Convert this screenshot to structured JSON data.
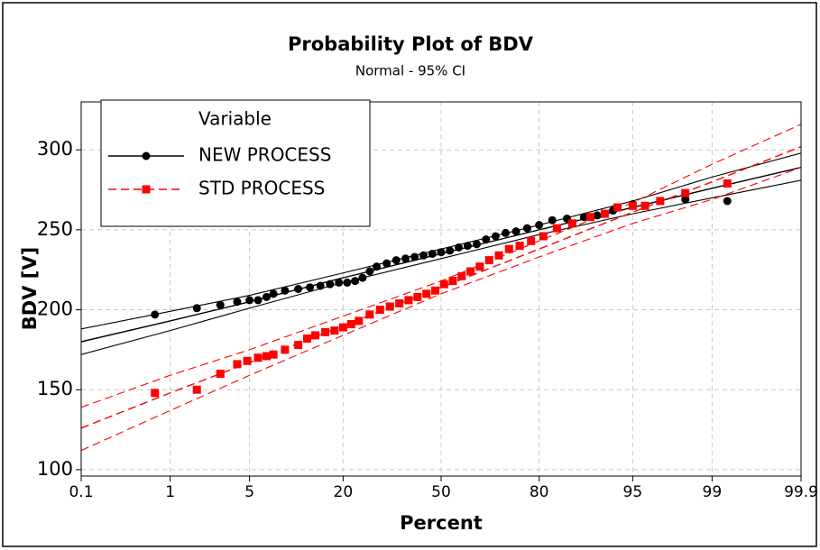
{
  "chart_data": {
    "type": "probability",
    "title": "Probability Plot of BDV",
    "subtitle": "Normal - 95% CI",
    "x_label": "Percent",
    "y_label": "BDV [V]",
    "legend_title": "Variable",
    "legend": "upper left",
    "grid": true,
    "xlim": [
      0.1,
      99.9
    ],
    "xticks": [
      0.1,
      1,
      5,
      20,
      50,
      80,
      95,
      99,
      99.9
    ],
    "ylim": [
      96,
      330
    ],
    "yticks": [
      100,
      150,
      200,
      250,
      300
    ],
    "ci_x": [
      0.1,
      1,
      5,
      20,
      50,
      80,
      95,
      99,
      99.9
    ],
    "series": [
      {
        "name": "NEW PROCESS",
        "color": "#000000",
        "marker": "circle",
        "dashed": false,
        "x": [
          0.7,
          1.8,
          2.9,
          4,
          5,
          5.8,
          6.7,
          7.5,
          9,
          11,
          13,
          15,
          17,
          19,
          21,
          23,
          25,
          27,
          29,
          32,
          35,
          38,
          41,
          44,
          47,
          50,
          53,
          56,
          59,
          62,
          65,
          68,
          71,
          74,
          77,
          80,
          83,
          86,
          89,
          91,
          93,
          95,
          98.2,
          99.3
        ],
        "values": [
          197,
          201,
          203,
          205,
          206,
          206,
          208,
          210,
          212,
          213,
          214,
          215,
          216,
          217,
          217,
          218,
          220,
          224,
          227,
          229,
          231,
          232,
          233,
          234,
          235,
          236,
          237,
          239,
          240,
          241,
          244,
          246,
          248,
          249,
          251,
          253,
          256,
          257,
          258,
          259,
          262,
          266,
          269,
          268
        ],
        "fit": [
          180,
          193,
          205,
          220,
          235,
          250,
          264,
          276,
          289
        ],
        "ci_lower": [
          172,
          187,
          201,
          217,
          232,
          247,
          260,
          270,
          281
        ],
        "ci_upper": [
          188,
          199,
          209,
          223,
          238,
          253,
          268,
          283,
          298
        ]
      },
      {
        "name": "STD PROCESS",
        "color": "#ff0000",
        "marker": "square",
        "dashed": true,
        "x": [
          0.7,
          1.8,
          2.9,
          4,
          4.8,
          5.8,
          6.7,
          7.5,
          9,
          11,
          12.5,
          14,
          16,
          18,
          20,
          22,
          24,
          27,
          30,
          33,
          36,
          39,
          42,
          45,
          48,
          51,
          54,
          57,
          60,
          63,
          66,
          69,
          72,
          75,
          78,
          81,
          84,
          87,
          90,
          92,
          93.5,
          95,
          96,
          97,
          98.2,
          99.3
        ],
        "values": [
          148,
          150,
          160,
          166,
          168,
          170,
          171,
          172,
          175,
          178,
          182,
          184,
          186,
          187,
          189,
          191,
          193,
          197,
          200,
          202,
          204,
          206,
          208,
          210,
          212,
          216,
          218,
          221,
          224,
          227,
          231,
          234,
          238,
          240,
          243,
          246,
          251,
          254,
          258,
          260,
          264,
          265,
          265,
          268,
          273,
          279
        ],
        "fit": [
          126,
          148,
          167,
          190,
          214,
          238,
          261,
          280,
          302
        ],
        "ci_lower": [
          112,
          137,
          159,
          184,
          210,
          233,
          254,
          269,
          289
        ],
        "ci_upper": [
          139,
          159,
          175,
          196,
          218,
          243,
          267,
          291,
          316
        ]
      }
    ]
  }
}
